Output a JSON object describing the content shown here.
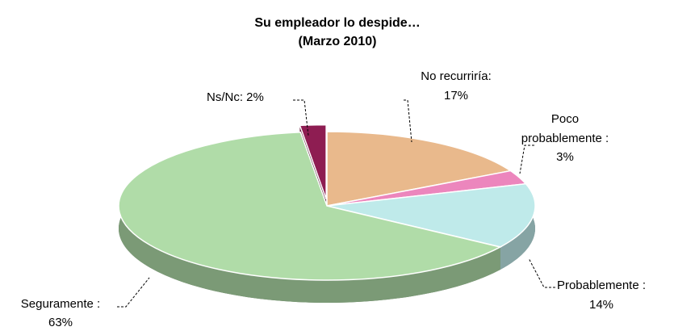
{
  "chart_data": {
    "type": "pie",
    "title": "Su empleador lo despide…",
    "subtitle": "(Marzo 2010)",
    "categories": [
      "No recurriría:",
      "Poco probablemente :",
      "Probablemente :",
      "Seguramente :",
      "Ns/Nc:"
    ],
    "values": [
      17,
      3,
      14,
      63,
      2
    ],
    "value_labels": [
      "17%",
      "3%",
      "14%",
      "63%",
      "2%"
    ],
    "colors": [
      "#e9b98c",
      "#ec86bd",
      "#bfeaea",
      "#b0dca8",
      "#8e1d52"
    ]
  }
}
